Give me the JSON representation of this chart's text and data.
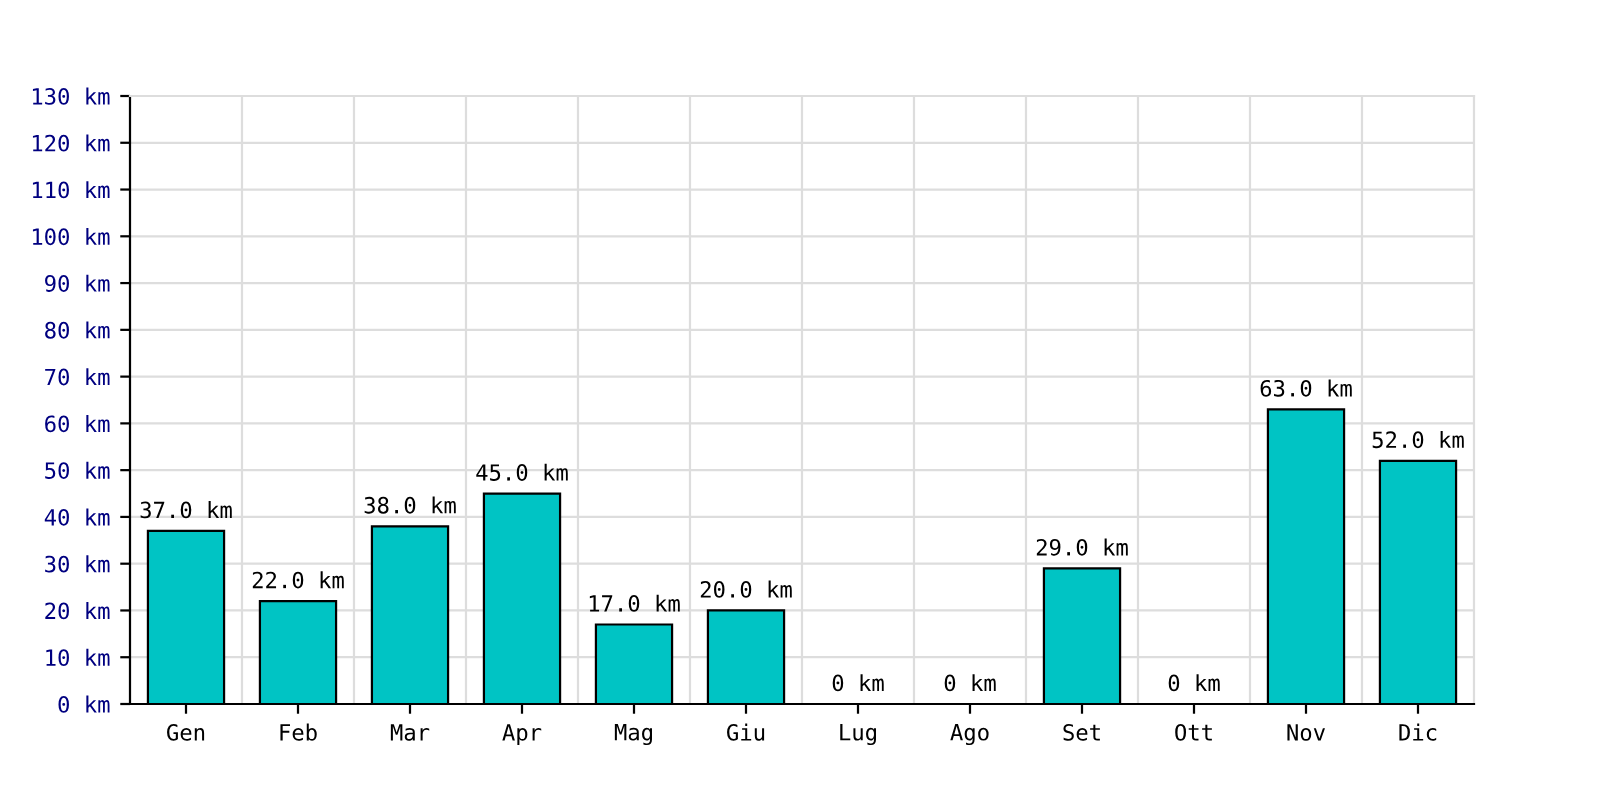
{
  "chart_data": {
    "type": "bar",
    "categories": [
      "Gen",
      "Feb",
      "Mar",
      "Apr",
      "Mag",
      "Giu",
      "Lug",
      "Ago",
      "Set",
      "Ott",
      "Nov",
      "Dic"
    ],
    "values": [
      37,
      22,
      38,
      45,
      17,
      20,
      0,
      0,
      29,
      0,
      63,
      52
    ],
    "value_labels": [
      "37.0 km",
      "22.0 km",
      "38.0 km",
      "45.0 km",
      "17.0 km",
      "20.0 km",
      "0 km",
      "0 km",
      "29.0 km",
      "0 km",
      "63.0 km",
      "52.0 km"
    ],
    "color": "#00c4c4",
    "ylim": [
      0,
      130
    ],
    "yticks": [
      {
        "value": 0,
        "label": "0 km"
      },
      {
        "value": 10,
        "label": "10 km"
      },
      {
        "value": 20,
        "label": "20 km"
      },
      {
        "value": 30,
        "label": "30 km"
      },
      {
        "value": 40,
        "label": "40 km"
      },
      {
        "value": 50,
        "label": "50 km"
      },
      {
        "value": 60,
        "label": "60 km"
      },
      {
        "value": 70,
        "label": "70 km"
      },
      {
        "value": 80,
        "label": "80 km"
      },
      {
        "value": 90,
        "label": "90 km"
      },
      {
        "value": 100,
        "label": "100 km"
      },
      {
        "value": 110,
        "label": "110 km"
      },
      {
        "value": 120,
        "label": "120 km"
      },
      {
        "value": 130,
        "label": "130 km"
      }
    ],
    "grid": true
  }
}
